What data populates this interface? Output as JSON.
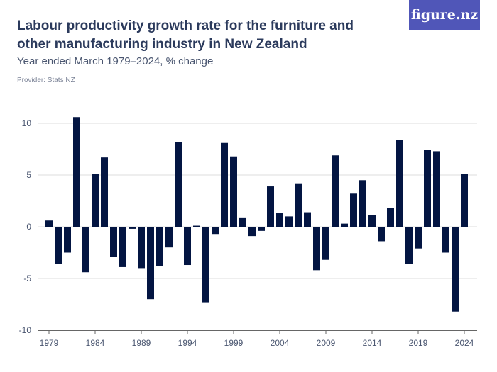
{
  "header": {
    "title": "Labour productivity growth rate for the furniture and other manufacturing industry in New Zealand",
    "subtitle": "Year ended March 1979–2024, % change",
    "provider": "Provider: Stats NZ",
    "logo": "figure.nz"
  },
  "colors": {
    "bar": "#031542",
    "logo": "#5056b8",
    "grid": "#dddddd"
  },
  "chart_data": {
    "type": "bar",
    "title": "Labour productivity growth rate for the furniture and other manufacturing industry in New Zealand",
    "subtitle": "Year ended March 1979–2024, % change",
    "xlabel": "",
    "ylabel": "",
    "ylim": [
      -10,
      10.6
    ],
    "yticks": [
      10,
      5,
      0,
      -5,
      -10
    ],
    "ytick_labels": [
      "10",
      "5",
      "0",
      "-5",
      "-10"
    ],
    "xtick_labels": [
      "1979",
      "1984",
      "1989",
      "1994",
      "1999",
      "2004",
      "2009",
      "2014",
      "2019",
      "2024"
    ],
    "grid": true,
    "categories": [
      1979,
      1980,
      1981,
      1982,
      1983,
      1984,
      1985,
      1986,
      1987,
      1988,
      1989,
      1990,
      1991,
      1992,
      1993,
      1994,
      1995,
      1996,
      1997,
      1998,
      1999,
      2000,
      2001,
      2002,
      2003,
      2004,
      2005,
      2006,
      2007,
      2008,
      2009,
      2010,
      2011,
      2012,
      2013,
      2014,
      2015,
      2016,
      2017,
      2018,
      2019,
      2020,
      2021,
      2022,
      2023,
      2024
    ],
    "values": [
      0.6,
      -3.6,
      -2.5,
      10.6,
      -4.4,
      5.1,
      6.7,
      -2.9,
      -3.9,
      -0.2,
      -4.0,
      -7.0,
      -3.8,
      -2.0,
      8.2,
      -3.7,
      0.1,
      -7.3,
      -0.7,
      8.1,
      6.8,
      0.9,
      -0.9,
      -0.4,
      3.9,
      1.3,
      1.0,
      4.2,
      1.4,
      -4.2,
      -3.2,
      6.9,
      0.3,
      3.2,
      4.5,
      1.1,
      -1.4,
      1.8,
      8.4,
      -3.6,
      -2.1,
      7.4,
      7.3,
      -2.5,
      -8.2,
      5.1
    ]
  }
}
